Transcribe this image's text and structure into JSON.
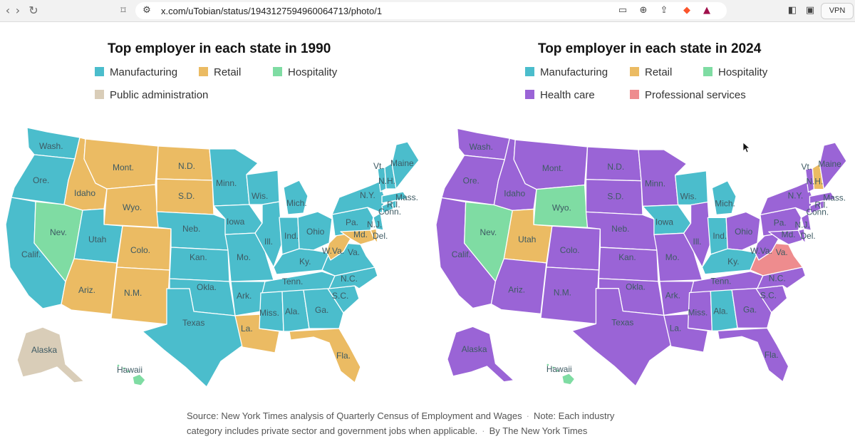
{
  "browser": {
    "url": "x.com/uTobian/status/1943127594960064713/photo/1",
    "vpn_label": "VPN"
  },
  "colors": {
    "manufacturing": "#4bbdcc",
    "retail": "#ebbb63",
    "hospitality": "#7fdca3",
    "public_administration": "#d9cdb8",
    "health_care": "#9a64d6",
    "professional_services": "#ee8c8e"
  },
  "map1990": {
    "title": "Top employer in each state in 1990",
    "legend": [
      "Manufacturing",
      "Retail",
      "Hospitality",
      "Public administration"
    ],
    "labels": {
      "wash": "Wash.",
      "ore": "Ore.",
      "calif": "Calif.",
      "idaho": "Idaho",
      "nev": "Nev.",
      "mont": "Mont.",
      "wyo": "Wyo.",
      "utah": "Utah",
      "colo": "Colo.",
      "ariz": "Ariz.",
      "nm": "N.M.",
      "nd": "N.D.",
      "sd": "S.D.",
      "neb": "Neb.",
      "kan": "Kan.",
      "okla": "Okla.",
      "texas": "Texas",
      "minn": "Minn.",
      "iowa": "Iowa",
      "mo": "Mo.",
      "ark": "Ark.",
      "la": "La.",
      "wis": "Wis.",
      "ill": "Ill.",
      "mich": "Mich.",
      "ind": "Ind.",
      "ohio": "Ohio",
      "ky": "Ky.",
      "tenn": "Tenn.",
      "miss": "Miss.",
      "ala": "Ala.",
      "ga": "Ga.",
      "fla": "Fla.",
      "sc": "S.C.",
      "nc": "N.C.",
      "va": "Va.",
      "wva": "W.Va.",
      "pa": "Pa.",
      "ny": "N.Y.",
      "md": "Md.",
      "del": "Del.",
      "nj": "N.J.",
      "conn": "Conn.",
      "ri": "R.I.",
      "mass": "Mass.",
      "nh": "N.H.",
      "vt": "Vt.",
      "maine": "Maine",
      "alaska": "Alaska",
      "hawaii": "Hawaii"
    }
  },
  "map2024": {
    "title": "Top employer in each state in 2024",
    "legend": [
      "Manufacturing",
      "Retail",
      "Hospitality",
      "Health care",
      "Professional services"
    ],
    "labels": {
      "wash": "Wash.",
      "ore": "Ore.",
      "calif": "Calif.",
      "idaho": "Idaho",
      "nev": "Nev.",
      "mont": "Mont.",
      "wyo": "Wyo.",
      "utah": "Utah",
      "colo": "Colo.",
      "ariz": "Ariz.",
      "nm": "N.M.",
      "nd": "N.D.",
      "sd": "S.D.",
      "neb": "Neb.",
      "kan": "Kan.",
      "okla": "Okla.",
      "texas": "Texas",
      "minn": "Minn.",
      "iowa": "Iowa",
      "mo": "Mo.",
      "ark": "Ark.",
      "la": "La.",
      "wis": "Wis.",
      "ill": "Ill.",
      "mich": "Mich.",
      "ind": "Ind.",
      "ohio": "Ohio",
      "ky": "Ky.",
      "tenn": "Tenn.",
      "miss": "Miss.",
      "ala": "Ala.",
      "ga": "Ga.",
      "fla": "Fla.",
      "sc": "S.C.",
      "nc": "N.C.",
      "va": "Va.",
      "wva": "W.Va.",
      "pa": "Pa.",
      "ny": "N.Y.",
      "md": "Md.",
      "del": "Del.",
      "nj": "N.J.",
      "conn": "Conn.",
      "ri": "R.I.",
      "mass": "Mass.",
      "nh": "N.H.",
      "vt": "Vt.",
      "maine": "Maine",
      "alaska": "Alaska",
      "hawaii": "Hawaii"
    }
  },
  "footer": {
    "source": "Source: New York Times analysis of Quarterly Census of Employment and Wages",
    "note_line1": "Note: Each industry",
    "note_line2": "category includes private sector and government jobs when applicable.",
    "byline": "By The New York Times"
  }
}
